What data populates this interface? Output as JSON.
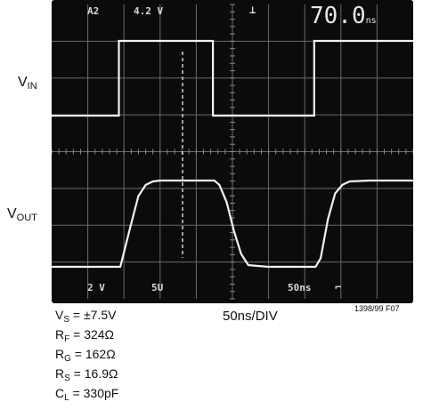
{
  "chart_data": {
    "type": "line",
    "title": "",
    "xlabel": "50ns/DIV",
    "x_unit": "ns",
    "xlim": [
      0,
      500
    ],
    "divisions": {
      "x": 10,
      "y": 8
    },
    "grid": true,
    "series": [
      {
        "name": "V_IN",
        "x": [
          0,
          93,
          93,
          223,
          223,
          363,
          363,
          500
        ],
        "y": [
          1,
          1,
          2,
          2,
          1,
          1,
          2,
          2
        ]
      },
      {
        "name": "V_OUT",
        "x": [
          0,
          95,
          110,
          120,
          130,
          140,
          150,
          225,
          232,
          242,
          252,
          262,
          272,
          300,
          365,
          372,
          382,
          392,
          402,
          412,
          440,
          500
        ],
        "y": [
          0,
          0,
          0.5,
          0.82,
          0.95,
          0.99,
          1,
          1,
          0.95,
          0.75,
          0.42,
          0.15,
          0.02,
          0,
          0,
          0.1,
          0.55,
          0.85,
          0.95,
          0.99,
          1,
          1
        ]
      }
    ],
    "annotations": {
      "top_left": "A2",
      "top_level": "4.2 V",
      "top_right": "70.0",
      "top_right_unit": "ns",
      "bottom_ch1": "2 V",
      "bottom_ch2": "5U",
      "bottom_time": "50ns"
    }
  },
  "labels": {
    "vin_main": "V",
    "vin_sub": "IN",
    "vout_main": "V",
    "vout_sub": "OUT"
  },
  "conditions": [
    {
      "main": "V",
      "sub": "S",
      "rest": " = ±7.5V"
    },
    {
      "main": "R",
      "sub": "F",
      "rest": " = 324Ω"
    },
    {
      "main": "R",
      "sub": "G",
      "rest": " = 162Ω"
    },
    {
      "main": "R",
      "sub": "S",
      "rest": " = 16.9Ω"
    },
    {
      "main": "C",
      "sub": "L",
      "rest": " = 330pF"
    }
  ],
  "xscale": "50ns/DIV",
  "figure_id": "1398/99 F07"
}
